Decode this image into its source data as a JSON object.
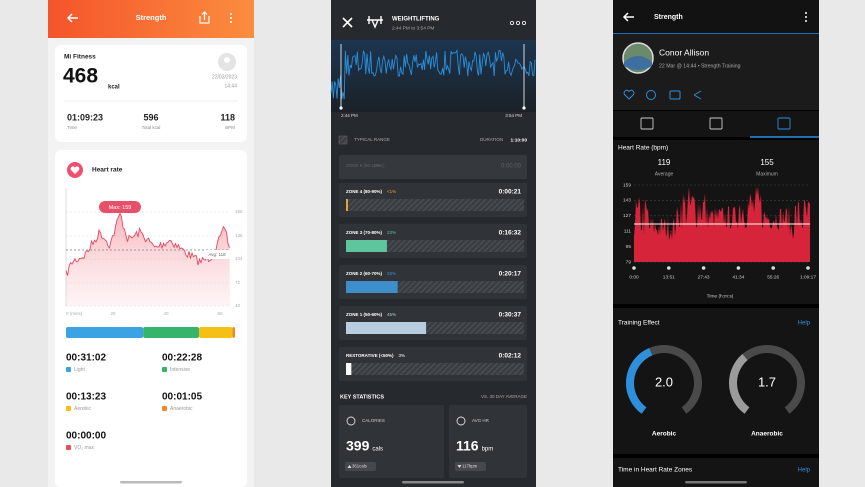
{
  "left": {
    "header": {
      "title": "Strength"
    },
    "summary": {
      "app": "Mi Fitness",
      "calories": "468",
      "unit": "kcal",
      "date": "22/03/2023",
      "time": "14:44"
    },
    "stats": [
      {
        "value": "01:09:23",
        "label": "Time"
      },
      {
        "value": "596",
        "label": "Total kcal"
      },
      {
        "value": "118",
        "label": "BPM"
      }
    ],
    "heart_rate": {
      "title": "Heart rate",
      "max": "Max: 159",
      "avg": "Avg: 118",
      "y_labels": [
        "168",
        "136",
        "104",
        "72",
        "40"
      ],
      "x_labels": [
        "0 (mins)",
        "20",
        "40",
        "60"
      ]
    },
    "zones": [
      {
        "time": "00:31:02",
        "name": "Light",
        "color": "#3ba2e4"
      },
      {
        "time": "00:22:28",
        "name": "Intensive",
        "color": "#35b46c"
      },
      {
        "time": "00:13:23",
        "name": "Aerobic",
        "color": "#f4c016"
      },
      {
        "time": "00:01:05",
        "name": "Anaerobic",
        "color": "#f08a24"
      },
      {
        "time": "00:00:00",
        "name": "VO₂ max",
        "color": "#e8505b"
      }
    ]
  },
  "middle": {
    "header": {
      "title": "WEIGHTLIFTING",
      "subtitle": "2:44 PM to 3:54 PM"
    },
    "chart": {
      "start": "2:44 PM",
      "end": "3:54 PM"
    },
    "range": {
      "label": "TYPICAL RANGE",
      "duration_label": "DURATION",
      "duration": "1:10:00"
    },
    "zones": [
      {
        "name": "ZONE 5 (90-100%)",
        "percent": "0%",
        "time": "0:00:00",
        "color": "#8c8f93"
      },
      {
        "name": "ZONE 4 (80-90%)",
        "percent": "<1%",
        "time": "0:00:21",
        "color": "#e9a23b"
      },
      {
        "name": "ZONE 3 (70-80%)",
        "percent": "23%",
        "time": "0:16:32",
        "color": "#5fc59c"
      },
      {
        "name": "ZONE 2 (60-70%)",
        "percent": "29%",
        "time": "0:20:17",
        "color": "#3d8fcb"
      },
      {
        "name": "ZONE 1 (50-60%)",
        "percent": "45%",
        "time": "0:30:37",
        "color": "#b9cde0"
      },
      {
        "name": "RESTORATIVE (<50%)",
        "percent": "3%",
        "time": "0:02:12",
        "color": "#ffffff"
      }
    ],
    "key_statistics": {
      "title": "KEY STATISTICS",
      "comparison": "VS. 30 DAY AVERAGE",
      "cards": [
        {
          "label": "CALORIES",
          "value": "399",
          "unit": "cals",
          "average": "361cals"
        },
        {
          "label": "AVG HR",
          "value": "116",
          "unit": "bpm",
          "average": "117bpm"
        }
      ]
    }
  },
  "right": {
    "header": {
      "title": "Strength"
    },
    "profile": {
      "name": "Conor Allison",
      "details": "22 Mar @ 14:44 • Strength Training"
    },
    "heart_rate": {
      "title": "Heart Rate (bpm)",
      "average": "119",
      "average_label": "Average",
      "maximum": "155",
      "maximum_label": "Maximum",
      "y_labels": [
        "159",
        "143",
        "127",
        "111",
        "95",
        "79"
      ],
      "x_labels": [
        "0:00",
        "13:51",
        "27:43",
        "41:34",
        "55:26",
        "1:09:17"
      ],
      "x_title": "Time (h:m:s)"
    },
    "training_effect": {
      "title": "Training Effect",
      "help": "Help",
      "gauges": [
        {
          "value": "2.0",
          "label": "Aerobic",
          "color": "#2e8fdc"
        },
        {
          "value": "1.7",
          "label": "Anaerobic",
          "color": "#9b9b9b"
        }
      ]
    },
    "zones_section": {
      "title": "Time in Heart Rate Zones",
      "help": "Help"
    }
  }
}
